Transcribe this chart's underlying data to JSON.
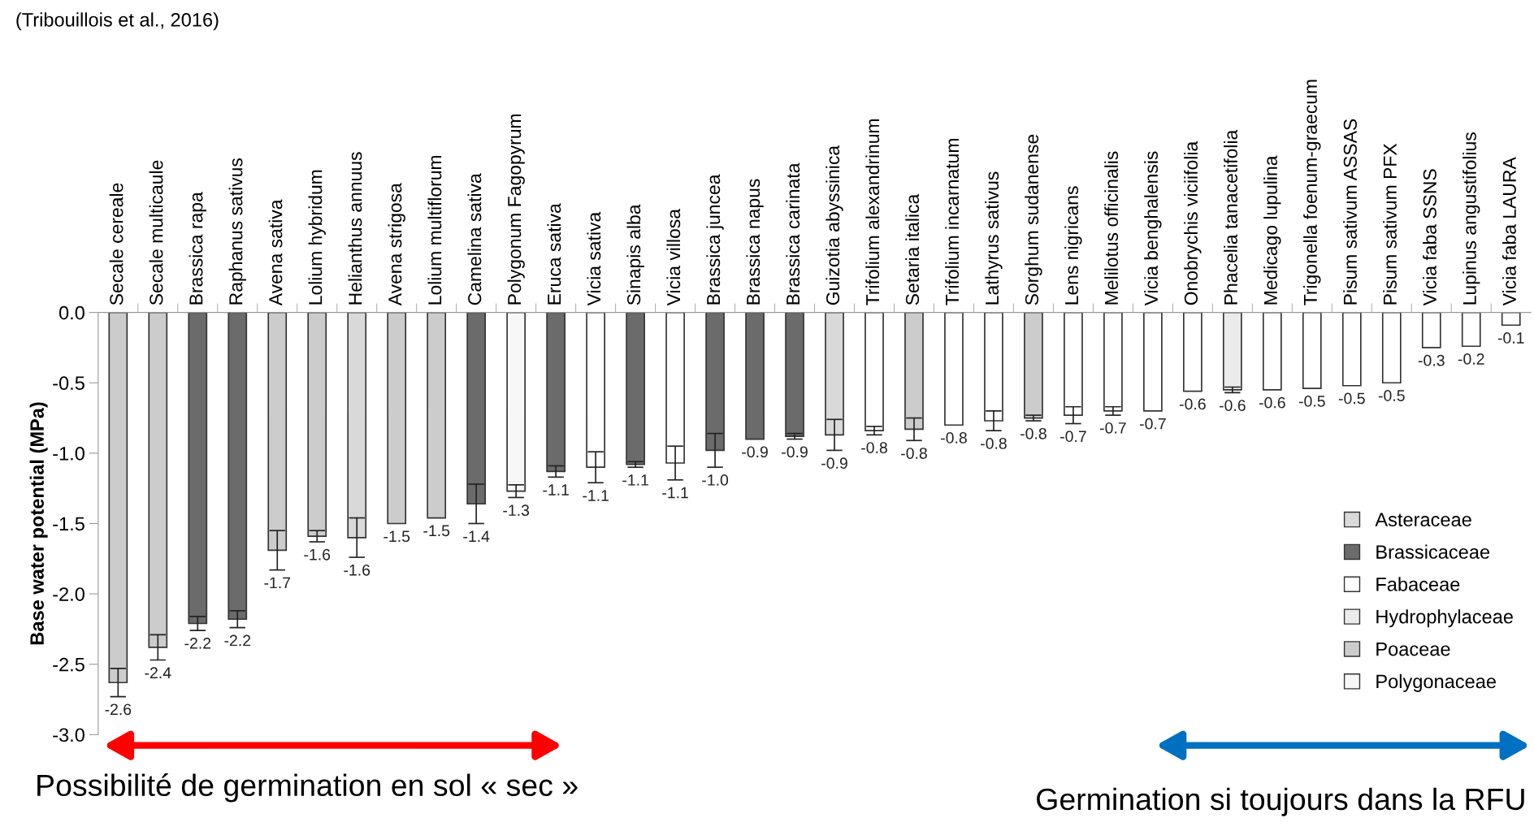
{
  "chart_data": {
    "type": "bar",
    "ylabel": "Base water potential (MPa)",
    "annotations": [
      "(Tribouillois et al., 2016)",
      "Possibilité de germination en sol « sec »",
      "Germination si toujours dans la RFU"
    ],
    "categories": [
      "Secale cereale",
      "Secale multicaule",
      "Brassica rapa",
      "Raphanus sativus",
      "Avena sativa",
      "Lolium hybridum",
      "Helianthus annuus",
      "Avena strigosa",
      "Lolium multiflorum",
      "Camelina sativa",
      "Polygonum Fagopyrum",
      "Eruca sativa",
      "Vicia sativa",
      "Sinapis alba",
      "Vicia villosa",
      "Brassica juncea",
      "Brassica napus",
      "Brassica carinata",
      "Guizotia abyssinica",
      "Trifolium alexandrinum",
      "Setaria italica",
      "Trifolium incarnatum",
      "Lathyrus sativus",
      "Sorghum sudanense",
      "Lens nigricans",
      "Melilotus officinalis",
      "Vicia benghalensis",
      "Onobrychis viciifolia",
      "Phacelia tanacetifolia",
      "Medicago lupulina",
      "Trigonella foenum-graecum",
      "Pisum sativum ASSAS",
      "Pisum sativum PFX",
      "Vicia faba SSNS",
      "Lupinus angustifolius",
      "Vicia faba LAURA"
    ],
    "series": [
      {
        "name": "Asteraceae",
        "color": "#d9d9d9",
        "values": [
          null,
          null,
          null,
          null,
          null,
          null,
          -1.6,
          null,
          null,
          null,
          null,
          null,
          null,
          null,
          null,
          null,
          null,
          null,
          -0.87,
          null,
          null,
          null,
          null,
          null,
          null,
          null,
          null,
          null,
          null,
          null,
          null,
          null,
          null,
          null,
          null,
          null
        ],
        "errors": [
          null,
          null,
          null,
          null,
          null,
          null,
          0.14,
          null,
          null,
          null,
          null,
          null,
          null,
          null,
          null,
          null,
          null,
          null,
          0.11,
          null,
          null,
          null,
          null,
          null,
          null,
          null,
          null,
          null,
          null,
          null,
          null,
          null,
          null,
          null,
          null,
          null
        ]
      },
      {
        "name": "Brassicaceae",
        "color": "#6b6b6b",
        "values": [
          null,
          null,
          -2.21,
          -2.18,
          null,
          null,
          null,
          null,
          null,
          -1.36,
          null,
          -1.13,
          null,
          -1.08,
          null,
          -0.98,
          -0.9,
          -0.88,
          null,
          null,
          null,
          null,
          null,
          null,
          null,
          null,
          null,
          null,
          null,
          null,
          null,
          null,
          null,
          null,
          null,
          null
        ],
        "errors": [
          null,
          null,
          0.05,
          0.06,
          null,
          null,
          null,
          null,
          null,
          0.14,
          null,
          0.04,
          null,
          0.02,
          null,
          0.12,
          null,
          0.02,
          null,
          null,
          null,
          null,
          null,
          null,
          null,
          null,
          null,
          null,
          null,
          null,
          null,
          null,
          null,
          null,
          null,
          null
        ]
      },
      {
        "name": "Fabaceae",
        "color": "#ffffff",
        "values": [
          null,
          null,
          null,
          null,
          null,
          null,
          null,
          null,
          null,
          null,
          null,
          null,
          -1.1,
          null,
          -1.07,
          null,
          null,
          null,
          null,
          -0.84,
          null,
          -0.8,
          -0.77,
          null,
          -0.73,
          -0.7,
          -0.7,
          -0.56,
          null,
          -0.55,
          -0.54,
          -0.52,
          -0.5,
          -0.25,
          -0.24,
          -0.09
        ],
        "errors": [
          null,
          null,
          null,
          null,
          null,
          null,
          null,
          null,
          null,
          null,
          null,
          null,
          0.11,
          null,
          0.12,
          null,
          null,
          null,
          null,
          0.03,
          null,
          null,
          0.07,
          null,
          0.06,
          0.03,
          null,
          null,
          null,
          null,
          null,
          null,
          null,
          null,
          null,
          null
        ]
      },
      {
        "name": "Hydrophylaceae",
        "color": "#ebebeb",
        "values": [
          null,
          null,
          null,
          null,
          null,
          null,
          null,
          null,
          null,
          null,
          null,
          null,
          null,
          null,
          null,
          null,
          null,
          null,
          null,
          null,
          null,
          null,
          null,
          null,
          null,
          null,
          null,
          null,
          -0.55,
          null,
          null,
          null,
          null,
          null,
          null,
          null
        ],
        "errors": [
          null,
          null,
          null,
          null,
          null,
          null,
          null,
          null,
          null,
          null,
          null,
          null,
          null,
          null,
          null,
          null,
          null,
          null,
          null,
          null,
          null,
          null,
          null,
          null,
          null,
          null,
          null,
          null,
          0.02,
          null,
          null,
          null,
          null,
          null,
          null,
          null
        ]
      },
      {
        "name": "Poaceae",
        "color": "#cccccc",
        "values": [
          -2.63,
          -2.38,
          null,
          null,
          -1.69,
          -1.59,
          null,
          -1.5,
          -1.46,
          null,
          null,
          null,
          null,
          null,
          null,
          null,
          null,
          null,
          null,
          null,
          -0.83,
          null,
          null,
          -0.75,
          null,
          null,
          null,
          null,
          null,
          null,
          null,
          null,
          null,
          null,
          null,
          null
        ],
        "errors": [
          0.1,
          0.09,
          null,
          null,
          0.14,
          0.04,
          null,
          null,
          null,
          null,
          null,
          null,
          null,
          null,
          null,
          null,
          null,
          null,
          null,
          null,
          0.08,
          null,
          null,
          0.02,
          null,
          null,
          null,
          null,
          null,
          null,
          null,
          null,
          null,
          null,
          null,
          null
        ]
      },
      {
        "name": "Polygonaceae",
        "color": "#f7f7f7",
        "values": [
          null,
          null,
          null,
          null,
          null,
          null,
          null,
          null,
          null,
          null,
          -1.27,
          null,
          null,
          null,
          null,
          null,
          null,
          null,
          null,
          null,
          null,
          null,
          null,
          null,
          null,
          null,
          null,
          null,
          null,
          null,
          null,
          null,
          null,
          null,
          null,
          null
        ],
        "errors": [
          null,
          null,
          null,
          null,
          null,
          null,
          null,
          null,
          null,
          null,
          0.045,
          null,
          null,
          null,
          null,
          null,
          null,
          null,
          null,
          null,
          null,
          null,
          null,
          null,
          null,
          null,
          null,
          null,
          null,
          null,
          null,
          null,
          null,
          null,
          null,
          null
        ]
      }
    ],
    "value_labels": [
      "-2.6",
      "-2.4",
      "-2.2",
      "-2.2",
      "-1.7",
      "-1.6",
      "-1.6",
      "-1.5",
      "-1.5",
      "-1.4",
      "-1.3",
      "-1.1",
      "-1.1",
      "-1.1",
      "-1.1",
      "-1.0",
      "-0.9",
      "-0.9",
      "-0.9",
      "-0.8",
      "-0.8",
      "-0.8",
      "-0.8",
      "-0.8",
      "-0.7",
      "-0.7",
      "-0.7",
      "-0.6",
      "-0.6",
      "-0.6",
      "-0.5",
      "-0.5",
      "-0.5",
      "-0.3",
      "-0.2",
      "-0.1"
    ],
    "ylim": [
      -3.0,
      0.0
    ],
    "yticks": [
      {
        "value": -3.0,
        "label": "-3.0"
      },
      {
        "value": -2.5,
        "label": "-2.5"
      },
      {
        "value": -2.0,
        "label": "-2.0"
      },
      {
        "value": -1.5,
        "label": "-1.5"
      },
      {
        "value": -1.0,
        "label": "-1.0"
      },
      {
        "value": -0.5,
        "label": "-0.5"
      },
      {
        "value": 0.0,
        "label": "0.0"
      }
    ],
    "grid": false,
    "legend": "bottom right"
  }
}
